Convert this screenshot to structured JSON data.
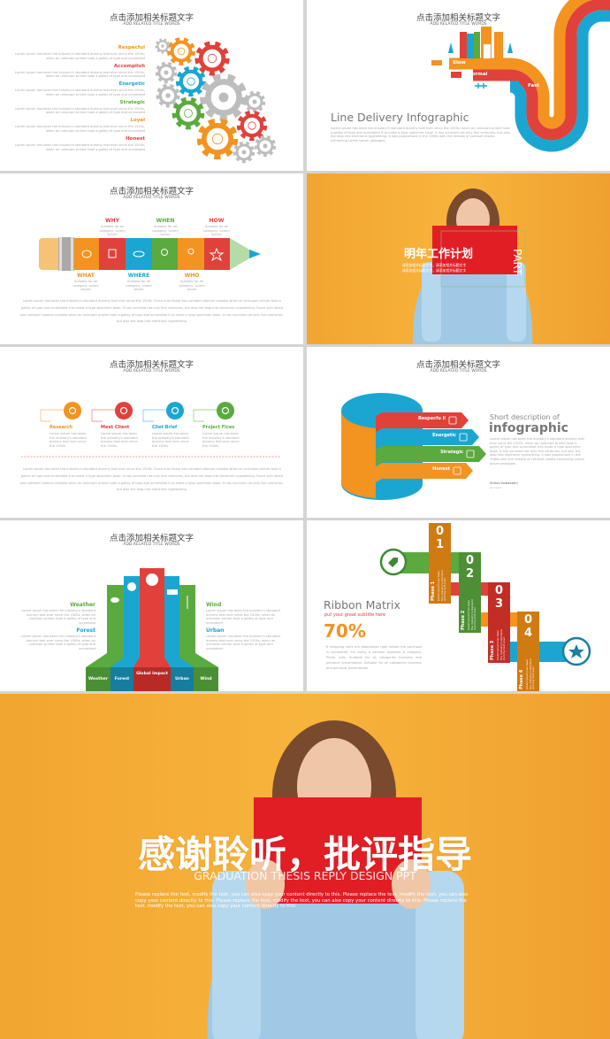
{
  "common": {
    "title": "点击添加相关标题文字",
    "subtitle": "ADD RELATED TITLE WORDS",
    "lorem_short": "Lorem Ipsum has been the industry's standard dummy text ever since the 1500s, when an unknown printer took a galley of type and scrambled",
    "lorem_small": "Lorem ipsum has been the industry's standard dummy text ever since the 1500s.",
    "lorem_long": "Lorem Ipsum has been the industry's standard dummy text ever since the 1500s. Fusce sum libero bas combeni bibmon makoko when an unknown printer took a galley of type and scrambled it to make a type specimen book. It has survived not only five centuries, but also the leap into electronic typesetting. Fusce sum libero bas combeni bibmon makoko when an unknown printer took a galley of type and scrambled it to make a type specimen book. It has survived not only five centuries, but also the leap into electronic typesetting."
  },
  "colors": {
    "orange": "#f39320",
    "red": "#e0413a",
    "blue": "#1ba6d2",
    "green": "#5aaa3f",
    "gray": "#bdbdbd",
    "photo_bg": "#f5a733"
  },
  "slide1": {
    "items": [
      {
        "label": "Respecful",
        "color": "#f39320"
      },
      {
        "label": "Accomplish",
        "color": "#e0413a"
      },
      {
        "label": "Energetic",
        "color": "#1ba6d2"
      },
      {
        "label": "Strategic",
        "color": "#5aaa3f"
      },
      {
        "label": "Loyal",
        "color": "#f39320"
      },
      {
        "label": "Honest",
        "color": "#e0413a"
      }
    ],
    "gear_icons": [
      "heart-icon",
      "diamond-icon",
      "flask-icon",
      "bulb-icon",
      "megaphone-icon",
      "thumbs-up-icon"
    ]
  },
  "slide2": {
    "speeds": [
      "Slow",
      "Normal",
      "Fast"
    ],
    "heading": "Line Delivery Infographic",
    "body": "Lorem Ipsum has been the industry's standard dummy text ever since the 1500s, when an unknown printer took a galley of type and scrambled it to make a type specimen book. It has survived not only five centuries, but also the leap into electronic typesetting. It was popularised in the 1960s with the release of Letraset sheets containing Lorem Ipsum passages."
  },
  "slide3": {
    "top": [
      {
        "label": "WHY",
        "color": "#e0413a"
      },
      {
        "label": "WHEN",
        "color": "#5aaa3f"
      },
      {
        "label": "HOW",
        "color": "#e0413a"
      }
    ],
    "bottom": [
      {
        "label": "WHAT",
        "color": "#f39320"
      },
      {
        "label": "WHERE",
        "color": "#1ba6d2"
      },
      {
        "label": "WHO",
        "color": "#f39320"
      }
    ],
    "caption": "Suitable for all category, Lorem Ipsum"
  },
  "slide4": {
    "title": "明年工作计划",
    "part": "PART",
    "bullets": [
      "请添加相关标题文字，请添加相关标题文字",
      "请添加相关标题文字，请添加相关标题文字"
    ]
  },
  "slide5": {
    "steps": [
      {
        "label": "Research",
        "color": "#f39320",
        "icon": "search-icon"
      },
      {
        "label": "Meet Client",
        "color": "#e0413a",
        "icon": "users-icon"
      },
      {
        "label": "Cliet Brief",
        "color": "#1ba6d2",
        "icon": "speaker-icon"
      },
      {
        "label": "Project Fices",
        "color": "#5aaa3f",
        "icon": "thumbs-up-icon"
      }
    ]
  },
  "slide6": {
    "arrows": [
      {
        "label": "Respecfu ll",
        "color": "#e0413a"
      },
      {
        "label": "Energetic",
        "color": "#1ba6d2"
      },
      {
        "label": "Strategic",
        "color": "#5aaa3f"
      },
      {
        "label": "Honest",
        "color": "#f39320"
      }
    ],
    "desc_small": "Short description of",
    "desc_big": "infographic",
    "author": "Simon Kobakami",
    "role": "Art Lead",
    "body": "Lorem Ipsum has been the industry's standard dummy text ever since the 1500s, when an unknown printer took a galley of type and scrambled it to make a type specimen book. It has survived not only five centuries, but also the leap into electronic typesetting. It was popularised in the 1960s with the release of Letraset sheets containing Lorem Ipsum passages."
  },
  "slide7": {
    "left": [
      {
        "label": "Weather",
        "color": "#5aaa3f"
      },
      {
        "label": "Forest",
        "color": "#1ba6d2"
      }
    ],
    "right": [
      {
        "label": "Wind",
        "color": "#5aaa3f"
      },
      {
        "label": "Urban",
        "color": "#1ba6d2"
      }
    ],
    "bases": [
      "Weather",
      "Forest",
      "Global Impact",
      "Urban",
      "Wind"
    ]
  },
  "slide8": {
    "heading": "Ribbon Matrix",
    "subheading": "put your great subtitle here",
    "percent": "70%",
    "body": "If shopping carts are abandoned right before the purchase is completed. For every a solution business & category. Photo calls. Suitable for all categories business and personal presentation. Suitable for all categories business and personal presentation.",
    "phases": [
      {
        "num": "01",
        "label": "Phase 1",
        "color": "#d07a12"
      },
      {
        "num": "02",
        "label": "Phase 2",
        "color": "#4e8f35"
      },
      {
        "num": "03",
        "label": "Phase 3",
        "color": "#c22d26"
      },
      {
        "num": "04",
        "label": "Phase 4",
        "color": "#d07a12"
      }
    ],
    "phase_text": "Lorem Ipsum has been the industry's standard dummy text ever"
  },
  "final": {
    "title": "感谢聆听，批评指导",
    "subtitle": "GRADUATION THESIS REPLY DESIGN PPT",
    "body": "Please replace the text, modify the text, you can also copy your content directly to this. Please replace the text, modify the text, you can also copy your content directly to this. Please replace the text, modify the text, you can also copy your content directly to this. Please replace the text, modify the text, you can also copy your content directly to this."
  }
}
